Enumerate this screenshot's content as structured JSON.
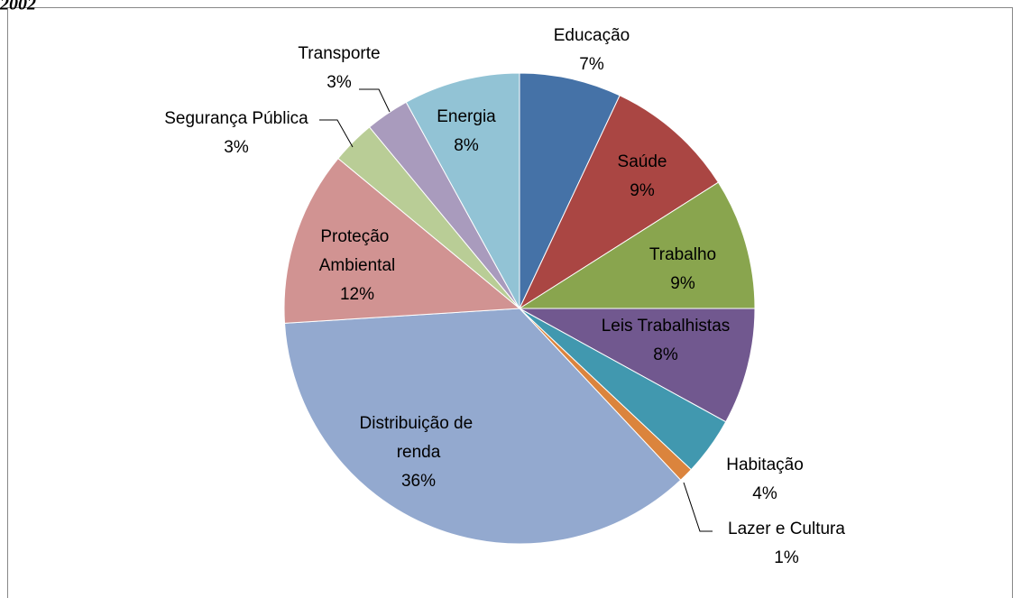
{
  "chart_data": {
    "type": "pie",
    "title": "2002",
    "categories": [
      "Educação",
      "Saúde",
      "Trabalho",
      "Leis Trabalhistas",
      "Habitação",
      "Lazer e Cultura",
      "Distribuição de renda",
      "Proteção Ambiental",
      "Segurança Pública",
      "Transporte",
      "Energia"
    ],
    "values": [
      7,
      9,
      9,
      8,
      4,
      1,
      36,
      12,
      3,
      3,
      8
    ],
    "value_labels": [
      "7%",
      "9%",
      "9%",
      "8%",
      "4%",
      "1%",
      "36%",
      "12%",
      "3%",
      "3%",
      "8%"
    ],
    "colors": [
      "#4572a7",
      "#aa4643",
      "#89a54e",
      "#71588f",
      "#4198af",
      "#db843d",
      "#93a9cf",
      "#d19392",
      "#b9cd96",
      "#a99bbd",
      "#92c3d5"
    ]
  }
}
